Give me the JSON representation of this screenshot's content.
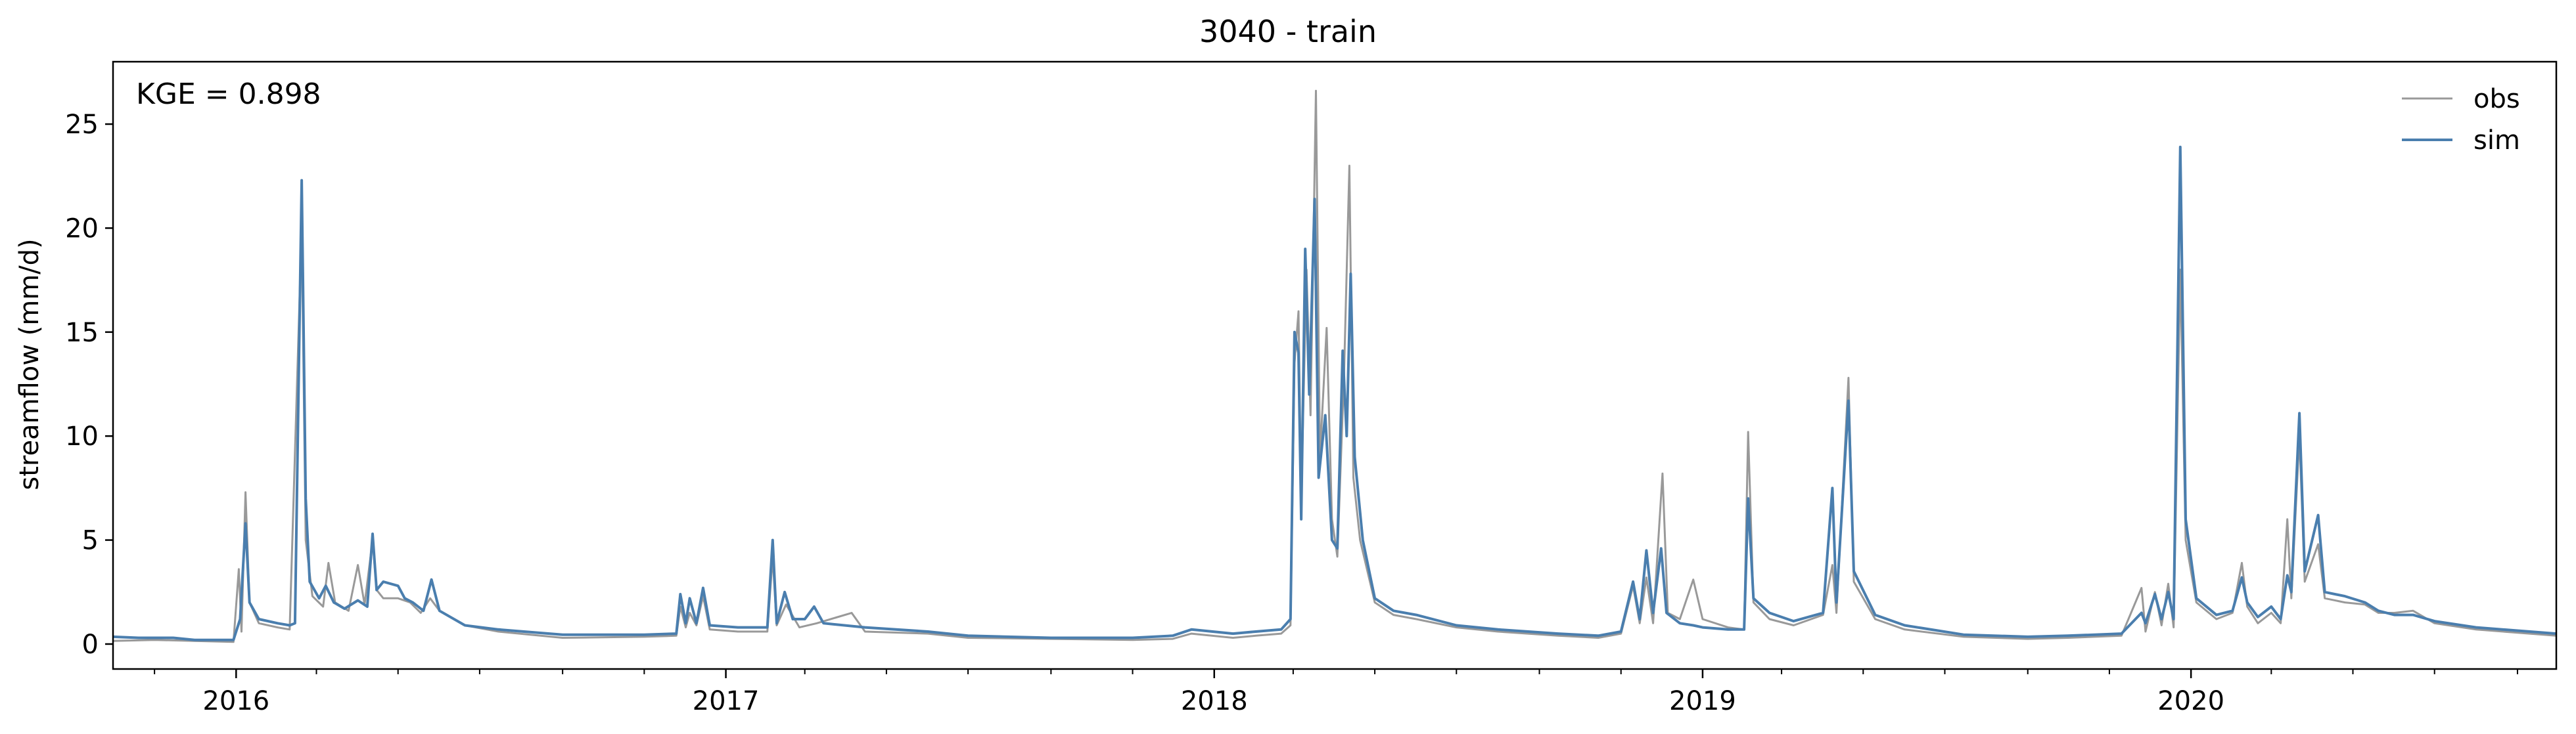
{
  "chart_data": {
    "type": "line",
    "title": "3040 - train",
    "ylabel": "streamflow (mm/d)",
    "xlabel": "",
    "annotation": "KGE = 0.898",
    "grid": false,
    "legend_position": "top-right",
    "xlim": [
      "2015-10-01",
      "2020-09-30"
    ],
    "ylim": [
      -1.2,
      28
    ],
    "yticks": [
      0,
      5,
      10,
      15,
      20,
      25
    ],
    "xticks": [
      {
        "date": "2016-01-01",
        "label": "2016"
      },
      {
        "date": "2017-01-01",
        "label": "2017"
      },
      {
        "date": "2018-01-01",
        "label": "2018"
      },
      {
        "date": "2019-01-01",
        "label": "2019"
      },
      {
        "date": "2020-01-01",
        "label": "2020"
      }
    ],
    "series": [
      {
        "name": "obs",
        "color": "#999999",
        "points": [
          [
            "2015-10-01",
            0.15
          ],
          [
            "2015-11-01",
            0.2
          ],
          [
            "2015-12-01",
            0.15
          ],
          [
            "2015-12-30",
            0.1
          ],
          [
            "2016-01-03",
            3.6
          ],
          [
            "2016-01-05",
            0.6
          ],
          [
            "2016-01-08",
            7.3
          ],
          [
            "2016-01-11",
            2.0
          ],
          [
            "2016-01-18",
            1.0
          ],
          [
            "2016-02-01",
            0.8
          ],
          [
            "2016-02-10",
            0.7
          ],
          [
            "2016-02-19",
            20.0
          ],
          [
            "2016-02-22",
            5.0
          ],
          [
            "2016-02-27",
            2.3
          ],
          [
            "2016-03-06",
            1.8
          ],
          [
            "2016-03-10",
            3.9
          ],
          [
            "2016-03-15",
            2.0
          ],
          [
            "2016-03-25",
            1.6
          ],
          [
            "2016-04-01",
            3.8
          ],
          [
            "2016-04-06",
            1.9
          ],
          [
            "2016-04-12",
            5.0
          ],
          [
            "2016-04-15",
            2.6
          ],
          [
            "2016-04-20",
            2.2
          ],
          [
            "2016-05-01",
            2.2
          ],
          [
            "2016-05-10",
            2.0
          ],
          [
            "2016-05-18",
            1.5
          ],
          [
            "2016-05-25",
            2.2
          ],
          [
            "2016-06-01",
            1.6
          ],
          [
            "2016-06-20",
            0.9
          ],
          [
            "2016-07-15",
            0.6
          ],
          [
            "2016-09-01",
            0.3
          ],
          [
            "2016-11-01",
            0.35
          ],
          [
            "2016-11-25",
            0.4
          ],
          [
            "2016-11-28",
            1.8
          ],
          [
            "2016-12-02",
            0.8
          ],
          [
            "2016-12-05",
            1.5
          ],
          [
            "2016-12-10",
            0.9
          ],
          [
            "2016-12-15",
            2.3
          ],
          [
            "2016-12-20",
            0.7
          ],
          [
            "2017-01-10",
            0.6
          ],
          [
            "2017-02-01",
            0.6
          ],
          [
            "2017-02-05",
            4.2
          ],
          [
            "2017-02-08",
            0.9
          ],
          [
            "2017-02-15",
            1.9
          ],
          [
            "2017-02-25",
            0.8
          ],
          [
            "2017-03-10",
            1.0
          ],
          [
            "2017-04-05",
            1.5
          ],
          [
            "2017-04-15",
            0.6
          ],
          [
            "2017-06-01",
            0.5
          ],
          [
            "2017-07-01",
            0.3
          ],
          [
            "2017-09-01",
            0.25
          ],
          [
            "2017-11-01",
            0.2
          ],
          [
            "2017-12-01",
            0.25
          ],
          [
            "2017-12-15",
            0.5
          ],
          [
            "2018-01-15",
            0.3
          ],
          [
            "2018-02-01",
            0.4
          ],
          [
            "2018-02-20",
            0.5
          ],
          [
            "2018-02-27",
            0.9
          ],
          [
            "2018-03-02",
            13.5
          ],
          [
            "2018-03-05",
            16.0
          ],
          [
            "2018-03-07",
            7.0
          ],
          [
            "2018-03-11",
            18.0
          ],
          [
            "2018-03-14",
            11.0
          ],
          [
            "2018-03-18",
            26.6
          ],
          [
            "2018-03-21",
            9.0
          ],
          [
            "2018-03-26",
            15.2
          ],
          [
            "2018-03-30",
            6.0
          ],
          [
            "2018-04-03",
            4.2
          ],
          [
            "2018-04-08",
            13.0
          ],
          [
            "2018-04-12",
            23.0
          ],
          [
            "2018-04-15",
            8.0
          ],
          [
            "2018-04-20",
            5.0
          ],
          [
            "2018-05-01",
            2.0
          ],
          [
            "2018-05-15",
            1.4
          ],
          [
            "2018-06-01",
            1.2
          ],
          [
            "2018-07-01",
            0.8
          ],
          [
            "2018-08-01",
            0.6
          ],
          [
            "2018-09-15",
            0.4
          ],
          [
            "2018-10-15",
            0.3
          ],
          [
            "2018-11-01",
            0.5
          ],
          [
            "2018-11-10",
            2.8
          ],
          [
            "2018-11-15",
            1.0
          ],
          [
            "2018-11-20",
            3.2
          ],
          [
            "2018-11-25",
            1.0
          ],
          [
            "2018-12-02",
            8.2
          ],
          [
            "2018-12-06",
            1.5
          ],
          [
            "2018-12-15",
            1.2
          ],
          [
            "2018-12-25",
            3.1
          ],
          [
            "2019-01-01",
            1.2
          ],
          [
            "2019-01-20",
            0.8
          ],
          [
            "2019-02-01",
            0.7
          ],
          [
            "2019-02-04",
            10.2
          ],
          [
            "2019-02-08",
            2.0
          ],
          [
            "2019-02-20",
            1.2
          ],
          [
            "2019-03-10",
            0.9
          ],
          [
            "2019-04-01",
            1.4
          ],
          [
            "2019-04-08",
            3.8
          ],
          [
            "2019-04-11",
            1.5
          ],
          [
            "2019-04-20",
            12.8
          ],
          [
            "2019-04-24",
            3.0
          ],
          [
            "2019-05-10",
            1.2
          ],
          [
            "2019-06-01",
            0.7
          ],
          [
            "2019-07-15",
            0.35
          ],
          [
            "2019-09-01",
            0.25
          ],
          [
            "2019-10-01",
            0.3
          ],
          [
            "2019-11-10",
            0.4
          ],
          [
            "2019-11-25",
            2.7
          ],
          [
            "2019-11-28",
            0.6
          ],
          [
            "2019-12-05",
            2.5
          ],
          [
            "2019-12-10",
            0.9
          ],
          [
            "2019-12-15",
            2.9
          ],
          [
            "2019-12-19",
            0.8
          ],
          [
            "2019-12-24",
            18.0
          ],
          [
            "2019-12-28",
            5.0
          ],
          [
            "2020-01-05",
            2.0
          ],
          [
            "2020-01-20",
            1.2
          ],
          [
            "2020-02-01",
            1.5
          ],
          [
            "2020-02-08",
            3.9
          ],
          [
            "2020-02-12",
            1.8
          ],
          [
            "2020-02-20",
            1.0
          ],
          [
            "2020-03-01",
            1.5
          ],
          [
            "2020-03-08",
            1.0
          ],
          [
            "2020-03-13",
            6.0
          ],
          [
            "2020-03-16",
            2.2
          ],
          [
            "2020-03-22",
            10.0
          ],
          [
            "2020-03-26",
            3.0
          ],
          [
            "2020-04-05",
            4.8
          ],
          [
            "2020-04-10",
            2.2
          ],
          [
            "2020-04-25",
            2.0
          ],
          [
            "2020-05-10",
            1.9
          ],
          [
            "2020-05-20",
            1.5
          ],
          [
            "2020-06-01",
            1.5
          ],
          [
            "2020-06-15",
            1.6
          ],
          [
            "2020-07-01",
            1.0
          ],
          [
            "2020-08-01",
            0.7
          ],
          [
            "2020-09-30",
            0.4
          ]
        ]
      },
      {
        "name": "sim",
        "color": "#4a7eae",
        "points": [
          [
            "2015-10-01",
            0.35
          ],
          [
            "2015-10-20",
            0.3
          ],
          [
            "2015-11-15",
            0.3
          ],
          [
            "2015-12-01",
            0.2
          ],
          [
            "2015-12-30",
            0.2
          ],
          [
            "2016-01-04",
            1.2
          ],
          [
            "2016-01-08",
            5.8
          ],
          [
            "2016-01-11",
            2.0
          ],
          [
            "2016-01-18",
            1.2
          ],
          [
            "2016-02-01",
            1.0
          ],
          [
            "2016-02-10",
            0.9
          ],
          [
            "2016-02-14",
            1.0
          ],
          [
            "2016-02-19",
            22.3
          ],
          [
            "2016-02-22",
            7.0
          ],
          [
            "2016-02-25",
            3.0
          ],
          [
            "2016-03-03",
            2.2
          ],
          [
            "2016-03-08",
            2.8
          ],
          [
            "2016-03-14",
            2.0
          ],
          [
            "2016-03-22",
            1.7
          ],
          [
            "2016-04-01",
            2.1
          ],
          [
            "2016-04-08",
            1.8
          ],
          [
            "2016-04-12",
            5.3
          ],
          [
            "2016-04-15",
            2.6
          ],
          [
            "2016-04-20",
            3.0
          ],
          [
            "2016-05-01",
            2.8
          ],
          [
            "2016-05-06",
            2.2
          ],
          [
            "2016-05-12",
            2.0
          ],
          [
            "2016-05-20",
            1.6
          ],
          [
            "2016-05-26",
            3.1
          ],
          [
            "2016-06-01",
            1.6
          ],
          [
            "2016-06-20",
            0.9
          ],
          [
            "2016-07-15",
            0.7
          ],
          [
            "2016-09-01",
            0.45
          ],
          [
            "2016-11-01",
            0.45
          ],
          [
            "2016-11-25",
            0.5
          ],
          [
            "2016-11-28",
            2.4
          ],
          [
            "2016-12-02",
            1.0
          ],
          [
            "2016-12-05",
            2.2
          ],
          [
            "2016-12-10",
            1.0
          ],
          [
            "2016-12-15",
            2.7
          ],
          [
            "2016-12-20",
            0.9
          ],
          [
            "2017-01-10",
            0.8
          ],
          [
            "2017-02-01",
            0.8
          ],
          [
            "2017-02-05",
            5.0
          ],
          [
            "2017-02-08",
            1.0
          ],
          [
            "2017-02-14",
            2.5
          ],
          [
            "2017-02-20",
            1.2
          ],
          [
            "2017-03-01",
            1.2
          ],
          [
            "2017-03-08",
            1.8
          ],
          [
            "2017-03-15",
            1.0
          ],
          [
            "2017-04-15",
            0.8
          ],
          [
            "2017-06-01",
            0.6
          ],
          [
            "2017-07-01",
            0.4
          ],
          [
            "2017-09-01",
            0.3
          ],
          [
            "2017-11-01",
            0.3
          ],
          [
            "2017-12-01",
            0.4
          ],
          [
            "2017-12-15",
            0.7
          ],
          [
            "2018-01-15",
            0.5
          ],
          [
            "2018-02-01",
            0.6
          ],
          [
            "2018-02-20",
            0.7
          ],
          [
            "2018-02-27",
            1.2
          ],
          [
            "2018-03-02",
            15.0
          ],
          [
            "2018-03-05",
            14.0
          ],
          [
            "2018-03-07",
            6.0
          ],
          [
            "2018-03-10",
            19.0
          ],
          [
            "2018-03-13",
            12.0
          ],
          [
            "2018-03-17",
            21.4
          ],
          [
            "2018-03-20",
            8.0
          ],
          [
            "2018-03-25",
            11.0
          ],
          [
            "2018-03-30",
            5.0
          ],
          [
            "2018-04-03",
            4.6
          ],
          [
            "2018-04-07",
            14.1
          ],
          [
            "2018-04-10",
            10.0
          ],
          [
            "2018-04-13",
            17.8
          ],
          [
            "2018-04-16",
            9.0
          ],
          [
            "2018-04-22",
            5.0
          ],
          [
            "2018-05-01",
            2.2
          ],
          [
            "2018-05-15",
            1.6
          ],
          [
            "2018-06-01",
            1.4
          ],
          [
            "2018-07-01",
            0.9
          ],
          [
            "2018-08-01",
            0.7
          ],
          [
            "2018-09-15",
            0.5
          ],
          [
            "2018-10-15",
            0.4
          ],
          [
            "2018-11-01",
            0.6
          ],
          [
            "2018-11-10",
            3.0
          ],
          [
            "2018-11-15",
            1.2
          ],
          [
            "2018-11-20",
            4.5
          ],
          [
            "2018-11-25",
            1.5
          ],
          [
            "2018-12-01",
            4.6
          ],
          [
            "2018-12-05",
            1.5
          ],
          [
            "2018-12-15",
            1.0
          ],
          [
            "2018-12-25",
            0.9
          ],
          [
            "2019-01-01",
            0.8
          ],
          [
            "2019-01-20",
            0.7
          ],
          [
            "2019-02-01",
            0.7
          ],
          [
            "2019-02-04",
            7.0
          ],
          [
            "2019-02-08",
            2.2
          ],
          [
            "2019-02-20",
            1.5
          ],
          [
            "2019-03-10",
            1.1
          ],
          [
            "2019-04-01",
            1.5
          ],
          [
            "2019-04-08",
            7.5
          ],
          [
            "2019-04-11",
            2.0
          ],
          [
            "2019-04-20",
            11.7
          ],
          [
            "2019-04-24",
            3.5
          ],
          [
            "2019-05-10",
            1.4
          ],
          [
            "2019-06-01",
            0.9
          ],
          [
            "2019-07-15",
            0.45
          ],
          [
            "2019-09-01",
            0.35
          ],
          [
            "2019-10-01",
            0.4
          ],
          [
            "2019-11-10",
            0.5
          ],
          [
            "2019-11-25",
            1.5
          ],
          [
            "2019-11-28",
            1.0
          ],
          [
            "2019-12-05",
            2.4
          ],
          [
            "2019-12-10",
            1.2
          ],
          [
            "2019-12-15",
            2.5
          ],
          [
            "2019-12-19",
            1.2
          ],
          [
            "2019-12-24",
            23.9
          ],
          [
            "2019-12-28",
            6.0
          ],
          [
            "2020-01-05",
            2.2
          ],
          [
            "2020-01-20",
            1.4
          ],
          [
            "2020-02-01",
            1.6
          ],
          [
            "2020-02-08",
            3.2
          ],
          [
            "2020-02-12",
            2.0
          ],
          [
            "2020-02-20",
            1.3
          ],
          [
            "2020-03-01",
            1.8
          ],
          [
            "2020-03-08",
            1.2
          ],
          [
            "2020-03-13",
            3.3
          ],
          [
            "2020-03-16",
            2.5
          ],
          [
            "2020-03-22",
            11.1
          ],
          [
            "2020-03-26",
            3.5
          ],
          [
            "2020-04-05",
            6.2
          ],
          [
            "2020-04-10",
            2.5
          ],
          [
            "2020-04-25",
            2.3
          ],
          [
            "2020-05-10",
            2.0
          ],
          [
            "2020-05-20",
            1.6
          ],
          [
            "2020-06-01",
            1.4
          ],
          [
            "2020-06-15",
            1.4
          ],
          [
            "2020-07-01",
            1.1
          ],
          [
            "2020-08-01",
            0.8
          ],
          [
            "2020-09-30",
            0.5
          ]
        ]
      }
    ]
  }
}
